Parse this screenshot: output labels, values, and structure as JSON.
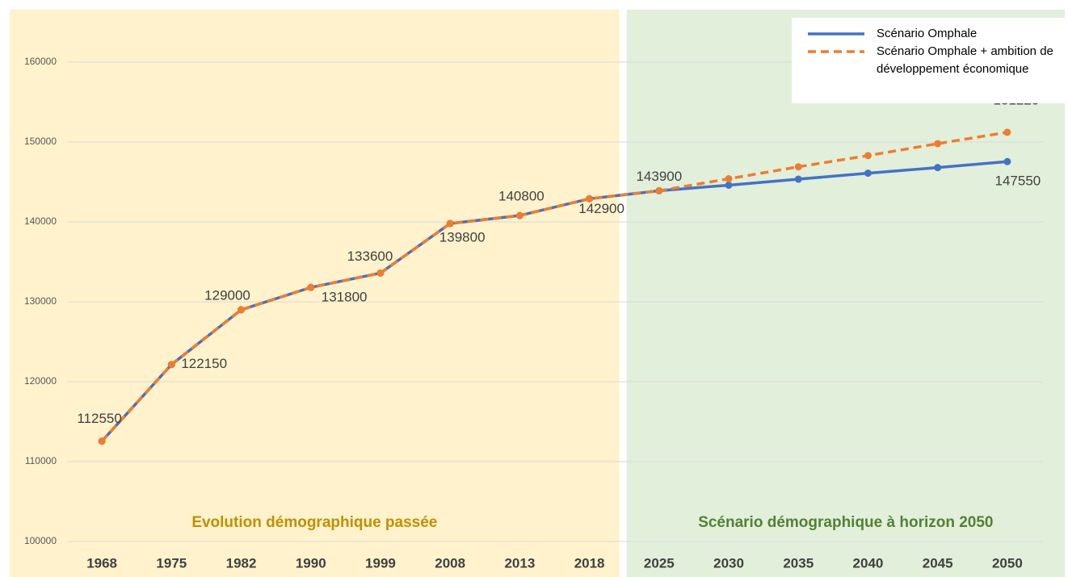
{
  "chart_data": {
    "type": "line",
    "categories": [
      "1968",
      "1975",
      "1982",
      "1990",
      "1999",
      "2008",
      "2013",
      "2018",
      "2025",
      "2030",
      "2035",
      "2040",
      "2045",
      "2050"
    ],
    "series": [
      {
        "name": "Scénario Omphale",
        "color": "#4472c4",
        "dashed": false,
        "values": [
          112550,
          122150,
          129000,
          131800,
          133600,
          139800,
          140800,
          142900,
          143900,
          144600,
          145350,
          146100,
          146800,
          147550
        ],
        "value_labels": [
          null,
          null,
          null,
          null,
          null,
          null,
          null,
          null,
          null,
          null,
          null,
          null,
          null,
          "147550"
        ]
      },
      {
        "name": "Scénario Omphale + ambition de développement économique",
        "color": "#ed7d31",
        "dashed": true,
        "values": [
          112550,
          122150,
          129000,
          131800,
          133600,
          139800,
          140800,
          142900,
          143900,
          145400,
          146900,
          148300,
          149800,
          151220
        ],
        "value_labels": [
          "112550",
          "122150",
          "129000",
          "131800",
          "133600",
          "139800",
          "140800",
          "142900",
          "143900",
          null,
          null,
          null,
          null,
          "151220"
        ]
      }
    ],
    "regions": [
      {
        "label": "Evolution démographique passée",
        "from": "1968",
        "to": "2018",
        "color": "#fff2cc",
        "text_color": "#bf9000"
      },
      {
        "label": "Scénario démographique à horizon 2050",
        "from": "2025",
        "to": "2050",
        "color": "#e2efda",
        "text_color": "#538135"
      }
    ],
    "ylim": [
      100000,
      166000
    ],
    "yticks": [
      100000,
      110000,
      120000,
      130000,
      140000,
      150000,
      160000
    ],
    "grid": true,
    "legend": "top-right"
  }
}
